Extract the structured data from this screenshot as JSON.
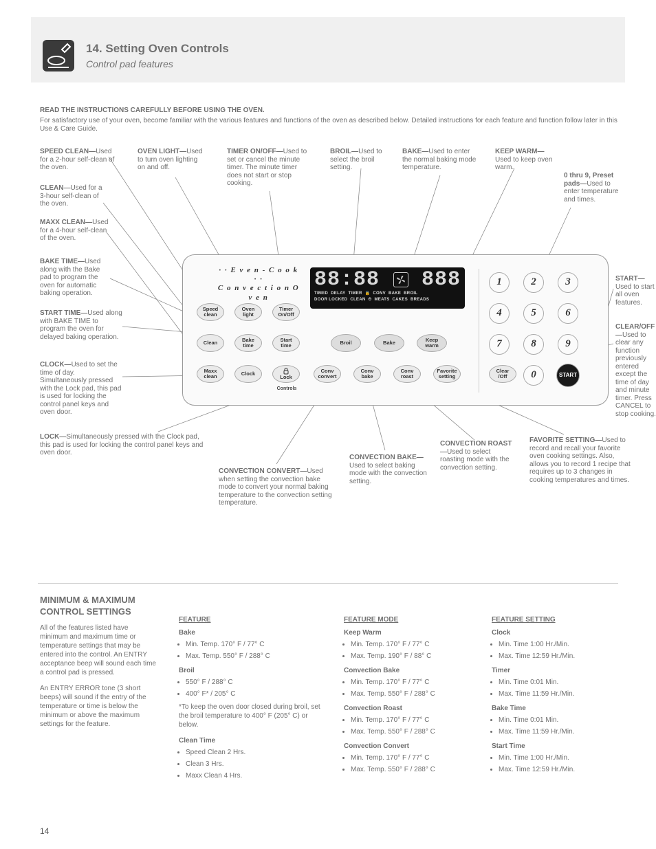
{
  "page": {
    "title": "14. Setting Oven Controls",
    "subtitle": "Control pad features",
    "page_number": "14",
    "intro_1": "READ THE INSTRUCTIONS CAREFULLY BEFORE USING THE OVEN.",
    "intro_2": "For satisfactory use of your oven, become familiar with the various features and functions of the oven as described below. Detailed instructions for each feature and function follow later in this Use & Care Guide."
  },
  "callouts": {
    "speed_clean": {
      "title": "SPEED CLEAN—",
      "text": "Used for a 2-hour self-clean of the oven."
    },
    "clean": {
      "title": "CLEAN—",
      "text": "Used for a 3-hour self-clean of the oven."
    },
    "maxx_clean": {
      "title": "MAXX CLEAN—",
      "text": "Used for a 4-hour self-clean of the oven."
    },
    "oven_light": {
      "title": "OVEN LIGHT—",
      "text": "Used to turn oven lighting on and off."
    },
    "timer": {
      "title": "TIMER ON/OFF—",
      "text": "Used to set or cancel the minute timer. The minute timer does not start or stop cooking."
    },
    "broil": {
      "title": "BROIL—",
      "text": "Used to select the broil setting."
    },
    "bake": {
      "title": "BAKE—",
      "text": "Used to enter the normal baking mode temperature."
    },
    "keep_warm": {
      "title": "KEEP WARM—",
      "text": "Used to keep oven warm."
    },
    "keys": {
      "title": "0 thru 9, Preset pads—",
      "text": "Used to enter temperature and times."
    },
    "clear": {
      "title": "CLEAR/OFF—",
      "text": "Used to clear any function previously entered except the time of day and minute timer. Press CANCEL to stop cooking."
    },
    "start": {
      "title": "START—",
      "text": "Used to start all oven features."
    },
    "favorite": {
      "title": "FAVORITE SETTING—",
      "text": "Used to record and recall your favorite oven cooking settings. Also, allows you to record 1 recipe that requires up to 3 changes in cooking temperatures and times."
    },
    "conv_roast": {
      "title": "CONVECTION ROAST—",
      "text": "Used to select roasting mode with the convection setting."
    },
    "conv_bake": {
      "title": "CONVECTION BAKE—",
      "text": "Used to select baking mode with the convection setting."
    },
    "conv_convert": {
      "title": "CONVECTION CONVERT—",
      "text": "Used when setting the convection bake mode to convert your normal baking temperature to the convection setting temperature."
    },
    "lock": {
      "title": "LOCK—",
      "text": "Simultaneously pressed with the Clock pad, this pad is used for locking the control panel keys and oven door."
    },
    "clock": {
      "title": "CLOCK—",
      "text": "Used to set the time of day. Simultaneously pressed with the Lock pad, this pad is used for locking the control panel keys and oven door."
    },
    "start_time": {
      "title": "START TIME—",
      "text": "Used along with BAKE TIME to program the oven for delayed baking operation."
    },
    "bake_time": {
      "title": "BAKE TIME—",
      "text": "Used along with the Bake pad to program the oven for automatic baking operation."
    }
  },
  "panel": {
    "brand_line1": "· · E v e n - C o o k · ·",
    "brand_line2": "C o n v e c t i o n   O v e n",
    "buttons": {
      "speed_clean": "Speed\nclean",
      "oven_light": "Oven\nlight",
      "timer": "Timer\nOn/Off",
      "clean": "Clean",
      "bake_time": "Bake\ntime",
      "start_time": "Start\ntime",
      "maxx": "Maxx\nclean",
      "clock": "Clock",
      "lock": "Lock",
      "lock_sub": "Controls",
      "broil": "Broil",
      "bake": "Bake",
      "keep_warm": "Keep\nwarm",
      "conv_convert": "Conv\nconvert",
      "conv_bake": "Conv\nbake",
      "conv_roast": "Conv\nroast",
      "favorite": "Favorite\nsetting",
      "clear": "Clear\n/Off",
      "start": "START"
    },
    "display": {
      "time": "88:88",
      "temp": "888",
      "words": [
        "TIMED",
        "DELAY",
        "TIMER",
        "CONV",
        "BAKE",
        "BROIL",
        "DOOR LOCKED",
        "CLEAN",
        "MEATS",
        "CAKES",
        "BREADS"
      ]
    },
    "keypad": [
      "1",
      "2",
      "3",
      "4",
      "5",
      "6",
      "7",
      "8",
      "9",
      "0"
    ]
  },
  "features": {
    "head": "MINIMUM & MAXIMUM CONTROL SETTINGS",
    "intro_a": "All of the features listed have minimum and maximum time or temperature settings that may be entered into the control. An ENTRY acceptance beep will sound each time a control pad is pressed.",
    "intro_b": "An ENTRY ERROR tone (3 short beeps) will sound if the entry of the temperature or time is below the minimum or above the maximum settings for the feature.",
    "col1_h": "FEATURE",
    "col1_sub": "Bake",
    "col1_min": "Min. Temp. 170° F / 77° C",
    "col1_max": "Max. Temp. 550° F / 288° C",
    "col1_broil": "Broil",
    "col1_b1": "550° F / 288° C",
    "col1_b2": "400° F* / 205° C",
    "col1_note": "*To keep the oven door closed during broil, set the broil temperature to 400° F (205° C) or below.",
    "col1_clean": "Clean Time",
    "col1_c1": "Speed Clean  2 Hrs.",
    "col1_c2": "Clean             3 Hrs.",
    "col1_c3": "Maxx Clean   4 Hrs.",
    "col2_h": "FEATURE MODE",
    "col2_kw": "Keep Warm",
    "col2_kw1": "Min. Temp. 170° F / 77° C",
    "col2_kw2": "Max. Temp. 190° F / 88° C",
    "col2_cb": "Convection Bake",
    "col2_cb1": "Min. Temp. 170° F / 77° C",
    "col2_cb2": "Max. Temp. 550° F / 288° C",
    "col2_cr": "Convection Roast",
    "col2_cr1": "Min. Temp. 170° F / 77° C",
    "col2_cr2": "Max. Temp. 550° F / 288° C",
    "col2_cc": "Convection Convert",
    "col2_cc1": "Min. Temp. 170° F / 77° C",
    "col2_cc2": "Max. Temp. 550° F / 288° C",
    "col3_h": "FEATURE SETTING",
    "col3_clk": "Clock",
    "col3_clk1": "Min. Time 1:00 Hr./Min.",
    "col3_clk2": "Max. Time 12:59 Hr./Min.",
    "col3_tm": "Timer",
    "col3_tm1": "Min. Time 0:01 Min.",
    "col3_tm2": "Max. Time 11:59 Hr./Min.",
    "col3_bt": "Bake Time",
    "col3_bt1": "Min. Time 0:01 Min.",
    "col3_bt2": "Max. Time 11:59 Hr./Min.",
    "col3_st": "Start Time",
    "col3_st1": "Min. Time 1:00 Hr./Min.",
    "col3_st2": "Max. Time 12:59 Hr./Min."
  },
  "colors": {
    "panel_border": "#999999",
    "btn_bg": "#eaeaea",
    "dark_bg": "#111111",
    "text_gray": "#6f6f6f"
  }
}
